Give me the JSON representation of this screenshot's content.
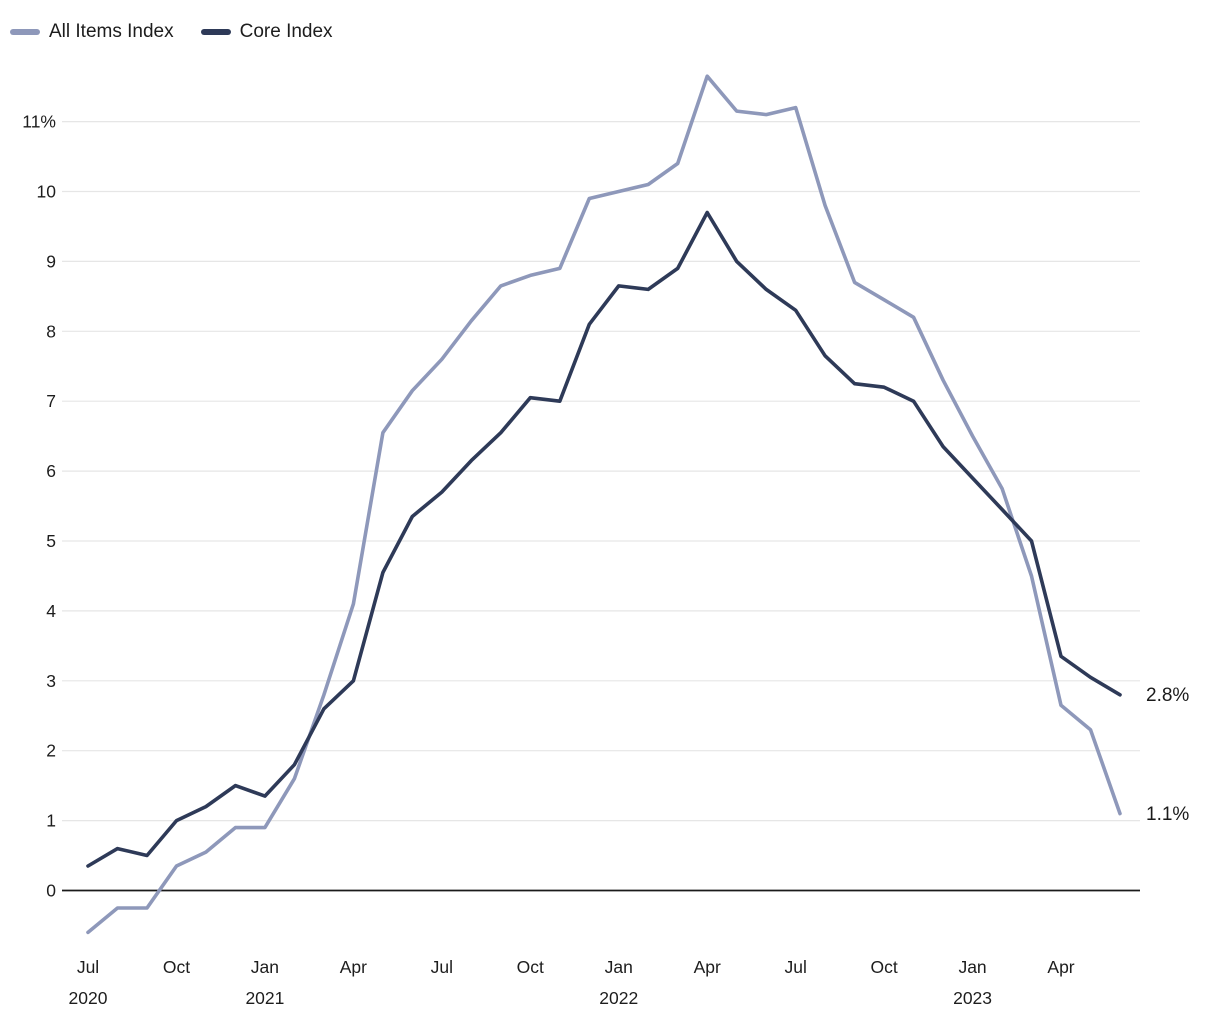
{
  "chart_data": {
    "type": "line",
    "title": "",
    "xlabel": "",
    "ylabel": "",
    "grid": "horizontal",
    "legend_position": "top-left",
    "ylim": [
      -0.9,
      11.9
    ],
    "x": [
      "Jul 2020",
      "Aug 2020",
      "Sep 2020",
      "Oct 2020",
      "Nov 2020",
      "Dec 2020",
      "Jan 2021",
      "Feb 2021",
      "Mar 2021",
      "Apr 2021",
      "May 2021",
      "Jun 2021",
      "Jul 2021",
      "Aug 2021",
      "Sep 2021",
      "Oct 2021",
      "Nov 2021",
      "Dec 2021",
      "Jan 2022",
      "Feb 2022",
      "Mar 2022",
      "Apr 2022",
      "May 2022",
      "Jun 2022",
      "Jul 2022",
      "Aug 2022",
      "Sep 2022",
      "Oct 2022",
      "Nov 2022",
      "Dec 2022",
      "Jan 2023",
      "Feb 2023",
      "Mar 2023",
      "Apr 2023",
      "May 2023",
      "Jun 2023"
    ],
    "series": [
      {
        "name": "All Items Index",
        "color": "#8E98BA",
        "end_label": "1.1%",
        "values": [
          -0.6,
          -0.25,
          -0.25,
          0.35,
          0.55,
          0.9,
          0.9,
          1.6,
          2.8,
          4.1,
          6.55,
          7.15,
          7.6,
          8.15,
          8.65,
          8.8,
          8.9,
          9.9,
          10.0,
          10.1,
          10.4,
          11.65,
          11.15,
          11.1,
          11.2,
          9.8,
          8.7,
          8.45,
          8.2,
          7.3,
          6.5,
          5.75,
          4.5,
          2.65,
          2.3,
          1.1
        ]
      },
      {
        "name": "Core Index",
        "color": "#2E3A58",
        "end_label": "2.8%",
        "values": [
          0.35,
          0.6,
          0.5,
          1.0,
          1.2,
          1.5,
          1.35,
          1.8,
          2.6,
          3.0,
          4.55,
          5.35,
          5.7,
          6.15,
          6.55,
          7.05,
          7.0,
          8.1,
          8.65,
          8.6,
          8.9,
          9.7,
          9.0,
          8.6,
          8.3,
          7.65,
          7.25,
          7.2,
          7.0,
          6.35,
          5.9,
          5.45,
          5.0,
          3.35,
          3.05,
          2.8
        ]
      }
    ],
    "y_ticks": [
      {
        "v": 0,
        "label": "0"
      },
      {
        "v": 1,
        "label": "1"
      },
      {
        "v": 2,
        "label": "2"
      },
      {
        "v": 3,
        "label": "3"
      },
      {
        "v": 4,
        "label": "4"
      },
      {
        "v": 5,
        "label": "5"
      },
      {
        "v": 6,
        "label": "6"
      },
      {
        "v": 7,
        "label": "7"
      },
      {
        "v": 8,
        "label": "8"
      },
      {
        "v": 9,
        "label": "9"
      },
      {
        "v": 10,
        "label": "10"
      },
      {
        "v": 11,
        "label": "11%"
      }
    ],
    "x_ticks": [
      {
        "i": 0,
        "label": "Jul",
        "year": "2020"
      },
      {
        "i": 3,
        "label": "Oct",
        "year": ""
      },
      {
        "i": 6,
        "label": "Jan",
        "year": "2021"
      },
      {
        "i": 9,
        "label": "Apr",
        "year": ""
      },
      {
        "i": 12,
        "label": "Jul",
        "year": ""
      },
      {
        "i": 15,
        "label": "Oct",
        "year": ""
      },
      {
        "i": 18,
        "label": "Jan",
        "year": "2022"
      },
      {
        "i": 21,
        "label": "Apr",
        "year": ""
      },
      {
        "i": 24,
        "label": "Jul",
        "year": ""
      },
      {
        "i": 27,
        "label": "Oct",
        "year": ""
      },
      {
        "i": 30,
        "label": "Jan",
        "year": "2023"
      },
      {
        "i": 33,
        "label": "Apr",
        "year": ""
      }
    ],
    "colors": {
      "grid": "#E6E6E6",
      "zero_line": "#1A1A1A",
      "tick_text": "#1D1D1D"
    }
  }
}
